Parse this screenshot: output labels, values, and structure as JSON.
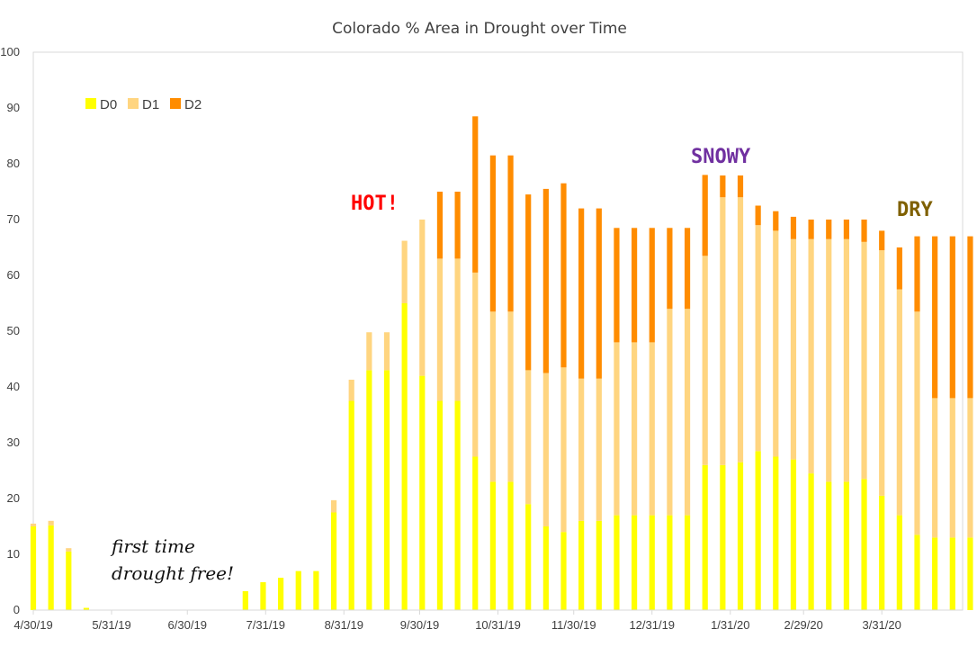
{
  "chart_data": {
    "type": "bar",
    "stacked": true,
    "title": "Colorado % Area in Drought over Time",
    "xlabel": "",
    "ylabel": "",
    "ylim": [
      0,
      100
    ],
    "yticks": [
      0,
      10,
      20,
      30,
      40,
      50,
      60,
      70,
      80,
      90,
      100
    ],
    "grid": false,
    "legend": {
      "placement": "top-left"
    },
    "x_tick_labels": [
      "4/30/19",
      "5/31/19",
      "6/30/19",
      "7/31/19",
      "8/31/19",
      "9/30/19",
      "10/31/19",
      "11/30/19",
      "12/31/19",
      "1/31/20",
      "2/29/20",
      "3/31/20"
    ],
    "dates": [
      "4/30/19",
      "5/7/19",
      "5/14/19",
      "5/21/19",
      "5/28/19",
      "6/4/19",
      "6/11/19",
      "6/18/19",
      "6/25/19",
      "7/2/19",
      "7/9/19",
      "7/16/19",
      "7/23/19",
      "7/30/19",
      "8/6/19",
      "8/13/19",
      "8/20/19",
      "8/27/19",
      "9/3/19",
      "9/10/19",
      "9/17/19",
      "9/24/19",
      "10/1/19",
      "10/8/19",
      "10/15/19",
      "10/22/19",
      "10/29/19",
      "11/5/19",
      "11/12/19",
      "11/19/19",
      "11/26/19",
      "12/3/19",
      "12/10/19",
      "12/17/19",
      "12/24/19",
      "12/31/19",
      "1/7/20",
      "1/14/20",
      "1/21/20",
      "1/28/20",
      "2/4/20",
      "2/11/20",
      "2/18/20",
      "2/25/20",
      "3/3/20",
      "3/10/20",
      "3/17/20",
      "3/24/20",
      "3/31/20",
      "4/7/20",
      "4/14/20",
      "4/21/20",
      "4/28/20",
      "5/5/20",
      "5/12/20"
    ],
    "series": [
      {
        "name": "D0",
        "color": "#FFFF00",
        "values": [
          15.0,
          15.2,
          10.5,
          0.4,
          0,
          0,
          0,
          0,
          0,
          0,
          0,
          0,
          3.4,
          5.0,
          5.8,
          7.0,
          7.0,
          17.5,
          37.5,
          43.0,
          43.0,
          55.0,
          42.0,
          37.5,
          37.5,
          27.5,
          23.0,
          23.0,
          19.0,
          15.0,
          14.0,
          16.0,
          16.0,
          17.0,
          17.0,
          17.0,
          17.0,
          17.0,
          26.0,
          26.0,
          26.5,
          28.5,
          27.5,
          27.0,
          24.5,
          23.0,
          23.0,
          23.5,
          20.5,
          17.0,
          13.5,
          13.0,
          13.0,
          13.0,
          13.0
        ]
      },
      {
        "name": "D1",
        "color": "#FFD580",
        "values": [
          0.5,
          0.8,
          0.6,
          0,
          0,
          0,
          0,
          0,
          0,
          0,
          0,
          0,
          0,
          0,
          0,
          0,
          0,
          2.2,
          3.8,
          6.8,
          6.8,
          11.2,
          28.0,
          25.5,
          25.5,
          33.0,
          30.5,
          30.5,
          24.0,
          27.5,
          29.5,
          25.5,
          25.5,
          31.0,
          31.0,
          31.0,
          37.0,
          37.0,
          37.5,
          48.0,
          47.5,
          40.5,
          40.5,
          39.5,
          42.0,
          43.5,
          43.5,
          42.5,
          44.0,
          40.5,
          40.0,
          25.0,
          25.0,
          25.0,
          25.0
        ]
      },
      {
        "name": "D2",
        "color": "#FF8C00",
        "values": [
          0,
          0,
          0,
          0,
          0,
          0,
          0,
          0,
          0,
          0,
          0,
          0,
          0,
          0,
          0,
          0,
          0,
          0,
          0,
          0,
          0,
          0,
          0,
          12.0,
          12.0,
          28.0,
          28.0,
          28.0,
          31.5,
          33.0,
          33.0,
          30.5,
          30.5,
          20.5,
          20.5,
          20.5,
          14.5,
          14.5,
          14.5,
          3.9,
          3.9,
          3.5,
          3.5,
          4.0,
          3.5,
          3.5,
          3.5,
          4.0,
          3.5,
          7.5,
          13.5,
          29.0,
          29.0,
          29.0,
          29.0
        ]
      }
    ],
    "annotations": [
      {
        "text": "first time",
        "color": "#111111"
      },
      {
        "text": "drought free!",
        "color": "#111111"
      },
      {
        "text": "HOT!",
        "color": "#FF0000"
      },
      {
        "text": "SNOWY",
        "color": "#7030A0"
      },
      {
        "text": "DRY",
        "color": "#7F6000"
      }
    ]
  }
}
